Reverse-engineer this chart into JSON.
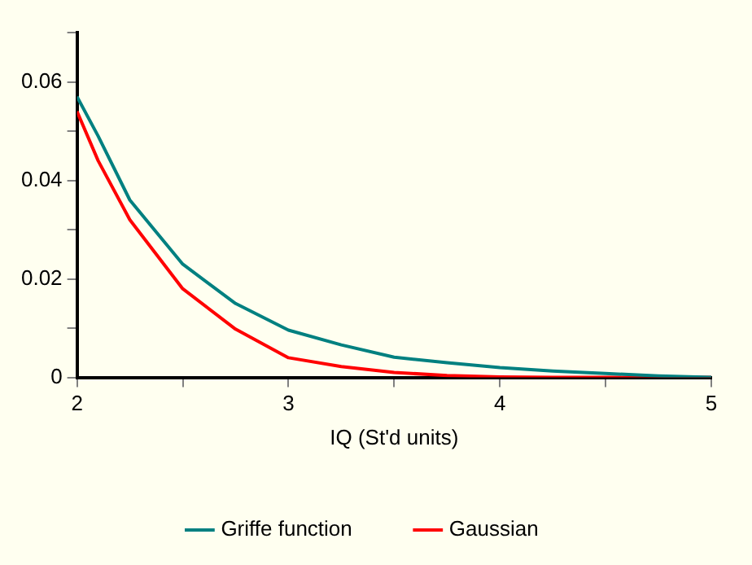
{
  "chart_data": {
    "type": "line",
    "xlabel": "IQ (St'd units)",
    "x": [
      2,
      2.1,
      2.25,
      2.5,
      2.75,
      3,
      3.25,
      3.5,
      3.75,
      4,
      4.25,
      4.5,
      4.75,
      5
    ],
    "series": [
      {
        "name": "Griffe function",
        "color": "#008080",
        "values": [
          0.057,
          0.049,
          0.036,
          0.023,
          0.015,
          0.0096,
          0.0066,
          0.0041,
          0.003,
          0.002,
          0.0013,
          0.0008,
          0.0003,
          0
        ]
      },
      {
        "name": "Gaussian",
        "color": "#ff0000",
        "values": [
          0.054,
          0.044,
          0.032,
          0.018,
          0.0098,
          0.004,
          0.0022,
          0.001,
          0.0004,
          0.0001,
          0,
          0,
          0,
          0
        ]
      }
    ],
    "xlim": [
      2,
      5
    ],
    "xticks": [
      2,
      {
        "value": 2.5,
        "label": null
      },
      3,
      {
        "value": 3.5,
        "label": null
      },
      4,
      {
        "value": 4.5,
        "label": null
      },
      5
    ],
    "ylim": [
      0,
      0.07
    ],
    "yticks": [
      0,
      {
        "value": 0.01,
        "label": null
      },
      0.02,
      {
        "value": 0.03,
        "label": null
      },
      0.04,
      {
        "value": 0.05,
        "label": null
      },
      0.06,
      {
        "value": 0.07,
        "label": null
      }
    ],
    "grid": false,
    "legend": "bottom",
    "marker": "none",
    "line_style": "solid"
  }
}
